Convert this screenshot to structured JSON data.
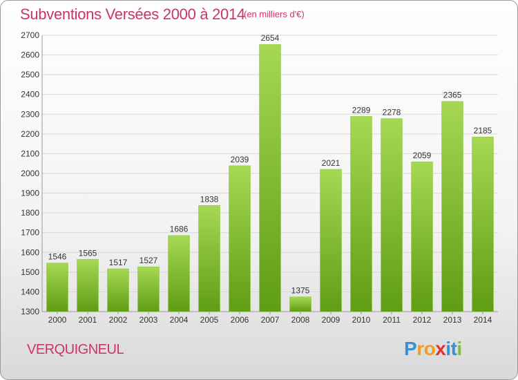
{
  "header": {
    "title": "Subventions Versées 2000 à 2014",
    "subtitle": "(en milliers d'€)"
  },
  "footer": {
    "place_name": "VERQUIGNEUL",
    "logo_letters": [
      "P",
      "r",
      "o",
      "x",
      "i",
      "t",
      "i"
    ],
    "logo_colors": [
      "#3b8fd6",
      "#f0a020",
      "#f0a020",
      "#e03030",
      "#3b8fd6",
      "#3b8fd6",
      "#7bc043"
    ]
  },
  "colors": {
    "bar_light": "#a6d853",
    "bar_dark": "#5e9d14",
    "accent": "#cc3366",
    "grid": "#d6d6d6",
    "text": "#333333"
  },
  "chart_data": {
    "type": "bar",
    "title": "Subventions Versées 2000 à 2014",
    "subtitle": "(en milliers d'€)",
    "xlabel": "",
    "ylabel": "",
    "categories": [
      "2000",
      "2001",
      "2002",
      "2003",
      "2004",
      "2005",
      "2006",
      "2007",
      "2008",
      "2009",
      "2010",
      "2011",
      "2012",
      "2013",
      "2014"
    ],
    "values": [
      1546,
      1565,
      1517,
      1527,
      1686,
      1838,
      2039,
      2654,
      1375,
      2021,
      2289,
      2278,
      2059,
      2365,
      2185
    ],
    "ylim": [
      1300,
      2700
    ],
    "yticks": [
      1300,
      1400,
      1500,
      1600,
      1700,
      1800,
      1900,
      2000,
      2100,
      2200,
      2300,
      2400,
      2500,
      2600,
      2700
    ],
    "grid": true,
    "data_labels": true
  }
}
